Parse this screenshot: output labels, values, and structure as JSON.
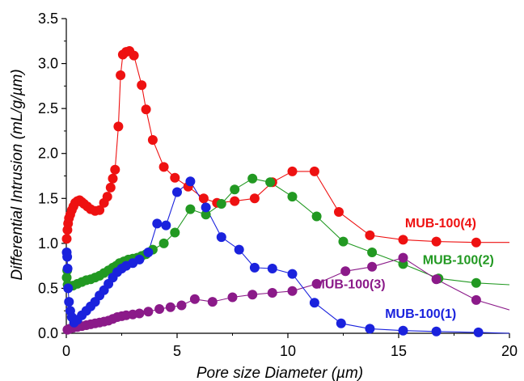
{
  "chart_data": {
    "type": "line",
    "title": "",
    "xlabel": "Pore size Diameter (µm)",
    "ylabel": "Differential Intrusion (mL/g/µm)",
    "xlim": [
      0,
      20
    ],
    "ylim": [
      0,
      3.5
    ],
    "xticks": [
      0,
      5,
      10,
      15,
      20
    ],
    "yticks": [
      0.0,
      0.5,
      1.0,
      1.5,
      2.0,
      2.5,
      3.0,
      3.5
    ],
    "xtick_labels": [
      "0",
      "5",
      "10",
      "15",
      "20"
    ],
    "ytick_labels": [
      "0.0",
      "0.5",
      "1.0",
      "1.5",
      "2.0",
      "2.5",
      "3.0",
      "3.5"
    ],
    "grid": false,
    "series": [
      {
        "name": "MUB-100(4)",
        "color": "#ee1111",
        "end_x": 20,
        "end_y": 1.01,
        "points": [
          [
            0.02,
            1.05
          ],
          [
            0.05,
            1.15
          ],
          [
            0.08,
            1.22
          ],
          [
            0.12,
            1.28
          ],
          [
            0.18,
            1.32
          ],
          [
            0.25,
            1.37
          ],
          [
            0.32,
            1.41
          ],
          [
            0.4,
            1.45
          ],
          [
            0.5,
            1.47
          ],
          [
            0.6,
            1.48
          ],
          [
            0.7,
            1.46
          ],
          [
            0.8,
            1.44
          ],
          [
            0.95,
            1.41
          ],
          [
            1.1,
            1.38
          ],
          [
            1.3,
            1.36
          ],
          [
            1.5,
            1.37
          ],
          [
            1.7,
            1.45
          ],
          [
            1.85,
            1.52
          ],
          [
            2.0,
            1.62
          ],
          [
            2.1,
            1.72
          ],
          [
            2.2,
            1.82
          ],
          [
            2.35,
            2.3
          ],
          [
            2.45,
            2.87
          ],
          [
            2.55,
            3.1
          ],
          [
            2.7,
            3.13
          ],
          [
            2.85,
            3.14
          ],
          [
            3.05,
            3.09
          ],
          [
            3.4,
            2.76
          ],
          [
            3.6,
            2.49
          ],
          [
            3.9,
            2.15
          ],
          [
            4.4,
            1.85
          ],
          [
            4.9,
            1.73
          ],
          [
            5.5,
            1.63
          ],
          [
            6.2,
            1.5
          ],
          [
            6.8,
            1.45
          ],
          [
            7.6,
            1.47
          ],
          [
            8.5,
            1.5
          ],
          [
            9.3,
            1.68
          ],
          [
            10.2,
            1.8
          ],
          [
            11.2,
            1.8
          ],
          [
            12.3,
            1.35
          ],
          [
            13.7,
            1.09
          ],
          [
            15.2,
            1.04
          ],
          [
            16.7,
            1.02
          ],
          [
            18.5,
            1.01
          ]
        ]
      },
      {
        "name": "MUB-100(2)",
        "color": "#229922",
        "end_x": 20,
        "end_y": 0.54,
        "points": [
          [
            0.02,
            0.62
          ],
          [
            0.04,
            0.7
          ],
          [
            0.06,
            0.54
          ],
          [
            0.12,
            0.52
          ],
          [
            0.3,
            0.53
          ],
          [
            0.5,
            0.55
          ],
          [
            0.7,
            0.57
          ],
          [
            0.9,
            0.59
          ],
          [
            1.1,
            0.6
          ],
          [
            1.3,
            0.62
          ],
          [
            1.5,
            0.64
          ],
          [
            1.7,
            0.67
          ],
          [
            1.9,
            0.7
          ],
          [
            2.1,
            0.73
          ],
          [
            2.25,
            0.75
          ],
          [
            2.4,
            0.78
          ],
          [
            2.6,
            0.8
          ],
          [
            2.8,
            0.82
          ],
          [
            3.0,
            0.83
          ],
          [
            3.2,
            0.84
          ],
          [
            3.4,
            0.86
          ],
          [
            3.6,
            0.88
          ],
          [
            3.9,
            0.93
          ],
          [
            4.4,
            1.0
          ],
          [
            4.9,
            1.12
          ],
          [
            5.6,
            1.38
          ],
          [
            6.3,
            1.32
          ],
          [
            7.0,
            1.44
          ],
          [
            7.6,
            1.6
          ],
          [
            8.4,
            1.72
          ],
          [
            9.2,
            1.68
          ],
          [
            10.2,
            1.52
          ],
          [
            11.3,
            1.3
          ],
          [
            12.5,
            1.02
          ],
          [
            13.8,
            0.9
          ],
          [
            15.2,
            0.77
          ],
          [
            16.8,
            0.61
          ],
          [
            18.5,
            0.56
          ]
        ]
      },
      {
        "name": "MUB-100(3)",
        "color": "#8b1a89",
        "end_x": 20,
        "end_y": 0.26,
        "points": [
          [
            0.05,
            0.04
          ],
          [
            0.15,
            0.05
          ],
          [
            0.3,
            0.06
          ],
          [
            0.5,
            0.07
          ],
          [
            0.7,
            0.08
          ],
          [
            0.9,
            0.09
          ],
          [
            1.1,
            0.1
          ],
          [
            1.3,
            0.11
          ],
          [
            1.5,
            0.12
          ],
          [
            1.7,
            0.13
          ],
          [
            1.9,
            0.14
          ],
          [
            2.1,
            0.16
          ],
          [
            2.3,
            0.18
          ],
          [
            2.5,
            0.19
          ],
          [
            2.7,
            0.2
          ],
          [
            3.0,
            0.21
          ],
          [
            3.3,
            0.22
          ],
          [
            3.7,
            0.24
          ],
          [
            4.2,
            0.27
          ],
          [
            4.7,
            0.29
          ],
          [
            5.2,
            0.31
          ],
          [
            5.8,
            0.38
          ],
          [
            6.6,
            0.35
          ],
          [
            7.5,
            0.4
          ],
          [
            8.4,
            0.43
          ],
          [
            9.3,
            0.45
          ],
          [
            10.2,
            0.47
          ],
          [
            11.3,
            0.55
          ],
          [
            12.6,
            0.69
          ],
          [
            13.8,
            0.74
          ],
          [
            15.2,
            0.84
          ],
          [
            16.7,
            0.6
          ],
          [
            18.5,
            0.37
          ]
        ]
      },
      {
        "name": "MUB-100(1)",
        "color": "#1a22dd",
        "end_x": 20,
        "end_y": 0.0,
        "points": [
          [
            0.02,
            0.9
          ],
          [
            0.04,
            0.85
          ],
          [
            0.06,
            0.72
          ],
          [
            0.08,
            0.5
          ],
          [
            0.12,
            0.35
          ],
          [
            0.18,
            0.25
          ],
          [
            0.25,
            0.18
          ],
          [
            0.35,
            0.12
          ],
          [
            0.5,
            0.15
          ],
          [
            0.7,
            0.2
          ],
          [
            0.9,
            0.25
          ],
          [
            1.1,
            0.3
          ],
          [
            1.3,
            0.35
          ],
          [
            1.5,
            0.42
          ],
          [
            1.7,
            0.48
          ],
          [
            1.9,
            0.55
          ],
          [
            2.1,
            0.62
          ],
          [
            2.3,
            0.68
          ],
          [
            2.5,
            0.72
          ],
          [
            2.7,
            0.75
          ],
          [
            3.0,
            0.78
          ],
          [
            3.3,
            0.82
          ],
          [
            3.7,
            0.9
          ],
          [
            4.1,
            1.22
          ],
          [
            4.5,
            1.2
          ],
          [
            5.0,
            1.57
          ],
          [
            5.6,
            1.69
          ],
          [
            6.3,
            1.4
          ],
          [
            7.0,
            1.07
          ],
          [
            7.8,
            0.93
          ],
          [
            8.5,
            0.73
          ],
          [
            9.3,
            0.72
          ],
          [
            10.2,
            0.66
          ],
          [
            11.2,
            0.34
          ],
          [
            12.4,
            0.11
          ],
          [
            13.7,
            0.05
          ],
          [
            15.2,
            0.03
          ],
          [
            16.7,
            0.02
          ],
          [
            18.6,
            0.01
          ]
        ]
      }
    ],
    "labels": [
      {
        "series": "MUB-100(4)",
        "x": 18.5,
        "y": 1.18,
        "anchor": "end"
      },
      {
        "series": "MUB-100(2)",
        "x": 19.3,
        "y": 0.77,
        "anchor": "end"
      },
      {
        "series": "MUB-100(3)",
        "x": 14.4,
        "y": 0.5,
        "anchor": "end"
      },
      {
        "series": "MUB-100(1)",
        "x": 17.6,
        "y": 0.17,
        "anchor": "end"
      }
    ]
  }
}
